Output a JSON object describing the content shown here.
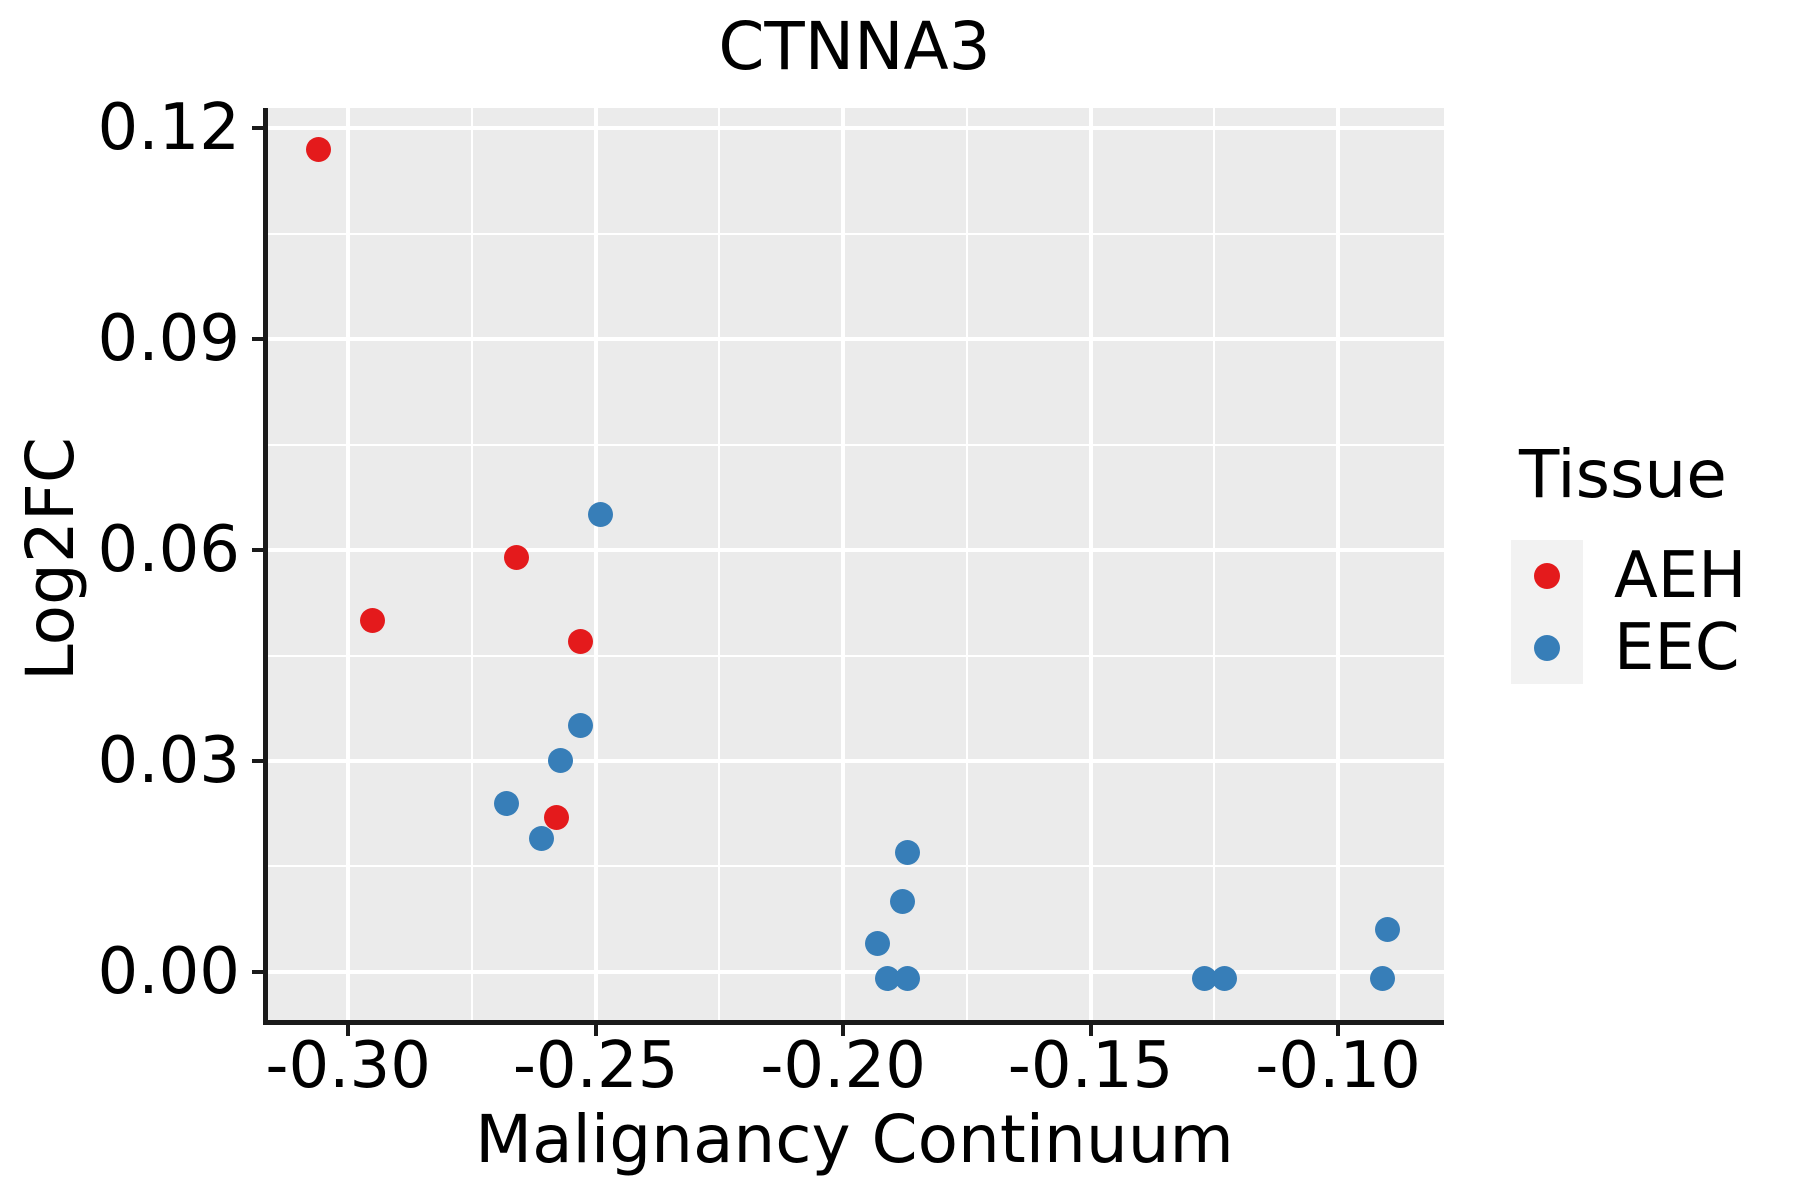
{
  "chart_data": {
    "type": "scatter",
    "title": "CTNNA3",
    "xlabel": "Malignancy Continuum",
    "ylabel": "Log2FC",
    "xlim": [
      -0.3168,
      -0.0786
    ],
    "ylim": [
      -0.007,
      0.1229
    ],
    "x_ticks": {
      "values": [
        -0.3,
        -0.25,
        -0.2,
        -0.15,
        -0.1
      ],
      "labels": [
        "-0.30",
        "-0.25",
        "-0.20",
        "-0.15",
        "-0.10"
      ]
    },
    "y_ticks": {
      "values": [
        0.0,
        0.03,
        0.06,
        0.09,
        0.12
      ],
      "labels": [
        "0.00",
        "0.03",
        "0.06",
        "0.09",
        "0.12"
      ]
    },
    "x_minor": [
      -0.275,
      -0.225,
      -0.175,
      -0.125
    ],
    "y_minor": [
      0.015,
      0.045,
      0.075,
      0.105
    ],
    "grid": "major+minor white gridlines on grey panel",
    "panel_bg": "#EBEBEB",
    "gridline_color": "#FFFFFF",
    "axis_color": "#1a1a1a",
    "legend_key_bg": "#F2F2F2",
    "legend": {
      "title": "Tissue",
      "position": "right",
      "entries": [
        {
          "label": "AEH",
          "color": "#E41A1C"
        },
        {
          "label": "EEC",
          "color": "#377EB8"
        }
      ]
    },
    "series": [
      {
        "name": "AEH",
        "color": "#E41A1C",
        "points": [
          [
            -0.306,
            0.117
          ],
          [
            -0.295,
            0.05
          ],
          [
            -0.266,
            0.059
          ],
          [
            -0.253,
            0.047
          ],
          [
            -0.258,
            0.022
          ]
        ]
      },
      {
        "name": "EEC",
        "color": "#377EB8",
        "points": [
          [
            -0.249,
            0.065
          ],
          [
            -0.253,
            0.035
          ],
          [
            -0.257,
            0.03
          ],
          [
            -0.268,
            0.024
          ],
          [
            -0.261,
            0.019
          ],
          [
            -0.187,
            0.017
          ],
          [
            -0.188,
            0.01
          ],
          [
            -0.193,
            0.004
          ],
          [
            -0.191,
            -0.001
          ],
          [
            -0.187,
            -0.001
          ],
          [
            -0.127,
            -0.001
          ],
          [
            -0.123,
            -0.001
          ],
          [
            -0.09,
            0.006
          ],
          [
            -0.091,
            -0.001
          ]
        ]
      }
    ]
  }
}
